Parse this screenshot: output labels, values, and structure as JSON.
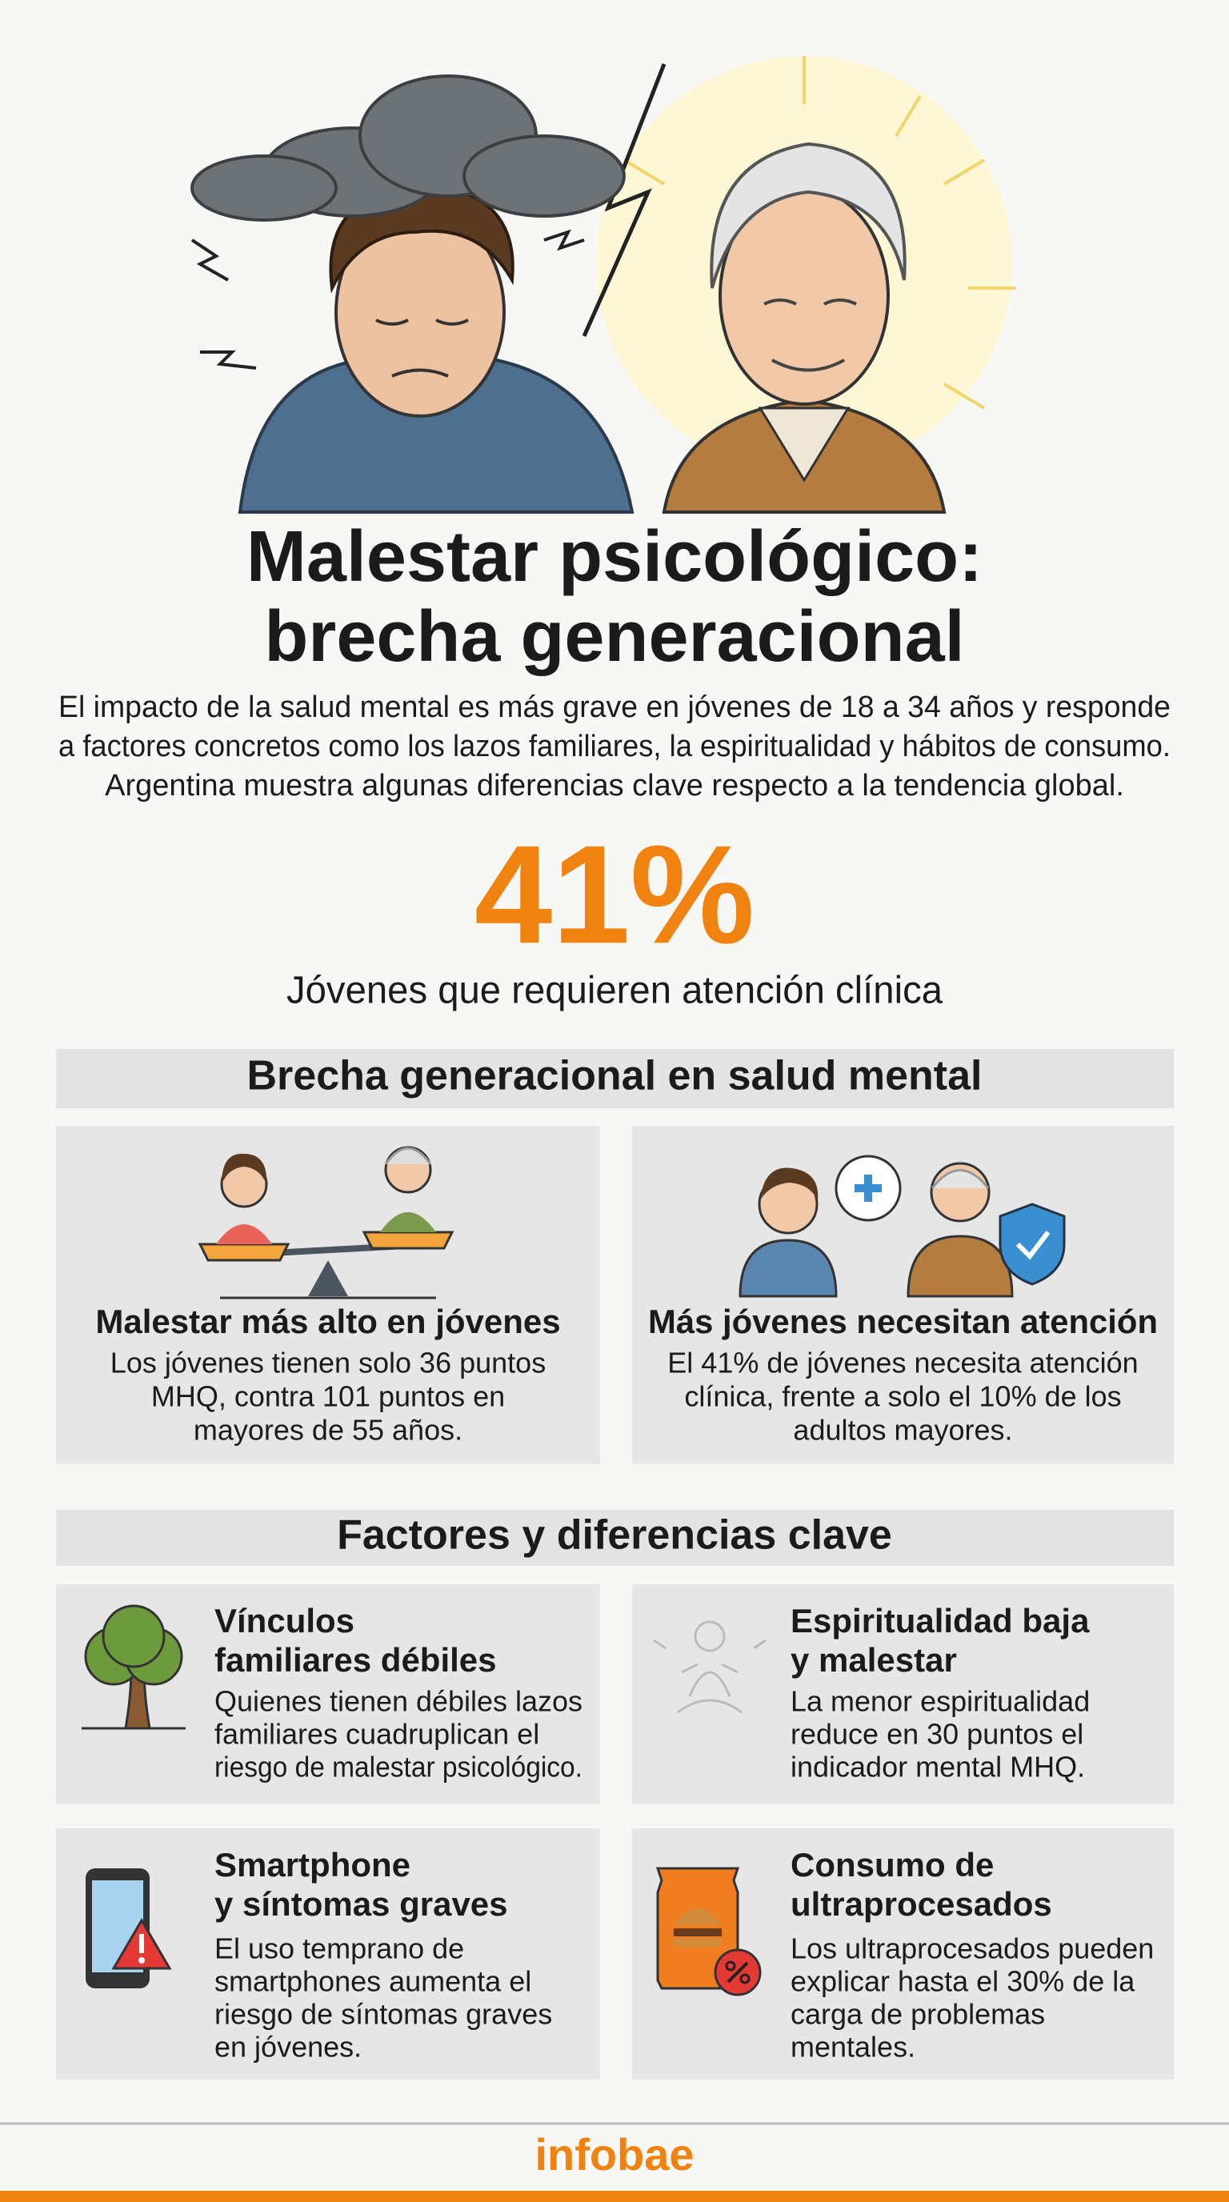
{
  "header": {
    "title": [
      "Malestar psicológico:",
      "brecha generacional"
    ],
    "intro": [
      "El impacto de la salud mental es más grave en jóvenes de 18 a 34 años y responde",
      "a factores concretos como los lazos familiares, la espiritualidad y hábitos de consumo.",
      "Argentina muestra algunas diferencias clave respecto a la tendencia global."
    ]
  },
  "highlight": {
    "value": "41%",
    "label": "Jóvenes que requieren atención clínica"
  },
  "sections": [
    {
      "heading": "Brecha generacional en salud mental",
      "cards": [
        {
          "title": "Malestar más alto en jóvenes",
          "body": [
            "Los jóvenes tienen solo 36 puntos",
            "MHQ, contra 101 puntos en",
            "mayores de 55 años."
          ]
        },
        {
          "title": "Más jóvenes necesitan atención",
          "body": [
            "El 41% de jóvenes necesita atención",
            "clínica, frente a solo el 10% de los",
            "adultos mayores."
          ]
        }
      ]
    },
    {
      "heading": "Factores y diferencias clave",
      "cards": [
        {
          "title": [
            "Vínculos",
            "familiares débiles"
          ],
          "body": [
            "Quienes tienen débiles lazos",
            "familiares cuadruplican el",
            "riesgo de malestar psicológico."
          ]
        },
        {
          "title": [
            "Espiritualidad baja",
            "y malestar"
          ],
          "body": [
            "La menor espiritualidad",
            "reduce en 30 puntos el",
            "indicador mental MHQ."
          ]
        },
        {
          "title": [
            "Smartphone",
            "y síntomas graves"
          ],
          "body": [
            "El uso temprano de",
            "smartphones aumenta el",
            "riesgo de síntomas graves",
            "en jóvenes."
          ]
        },
        {
          "title": [
            "Consumo de",
            "ultraprocesados"
          ],
          "body": [
            "Los ultraprocesados pueden",
            "explicar hasta el 30% de la",
            "carga de problemas",
            "mentales."
          ]
        }
      ]
    }
  ],
  "footer": {
    "brand": "infobae"
  }
}
